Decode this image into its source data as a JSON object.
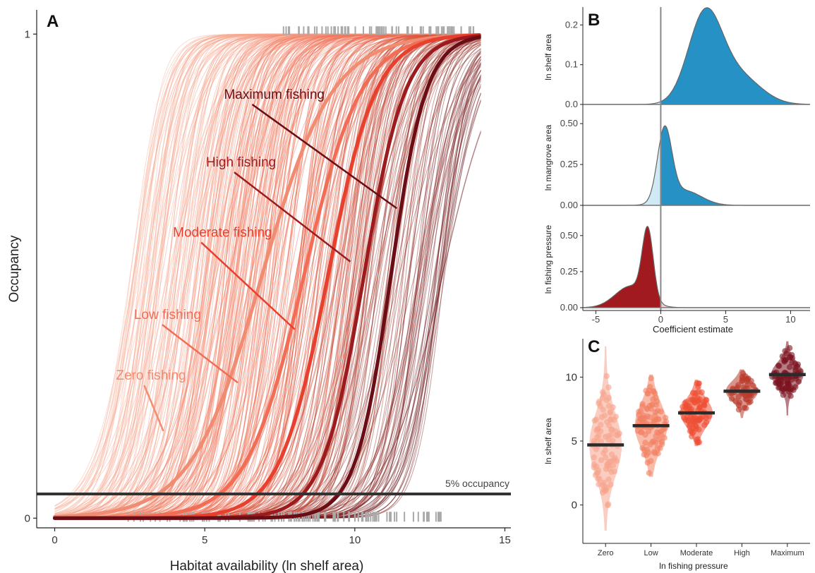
{
  "chart_data": [
    {
      "panel": "A",
      "type": "line",
      "xlabel": "Habitat availability (ln shelf area)",
      "ylabel": "Occupancy",
      "xlim": [
        -0.6,
        15.2
      ],
      "ylim": [
        -0.02,
        1.05
      ],
      "x_ticks": [
        0,
        5,
        10,
        15
      ],
      "y_ticks": [
        0,
        1
      ],
      "threshold": {
        "y": 0.05,
        "label": "5% occupancy"
      },
      "series": [
        {
          "name": "Zero fishing",
          "midpoint": 6.9,
          "slope": 0.85,
          "color": "#f08c72",
          "label_pos": [
            2.7,
            0.295
          ],
          "arrow_to": [
            3.62,
            0.18
          ]
        },
        {
          "name": "Low fishing",
          "midpoint": 8.3,
          "slope": 1.05,
          "color": "#f26d55",
          "label_pos": [
            3.3,
            0.42
          ],
          "arrow_to": [
            6.1,
            0.28
          ]
        },
        {
          "name": "Moderate fishing",
          "midpoint": 9.1,
          "slope": 1.25,
          "color": "#e8402e",
          "label_pos": [
            4.6,
            0.59
          ],
          "arrow_to": [
            8.0,
            0.39
          ]
        },
        {
          "name": "High fishing",
          "midpoint": 10.3,
          "slope": 1.45,
          "color": "#9c1b1f",
          "label_pos": [
            5.7,
            0.735
          ],
          "arrow_to": [
            9.85,
            0.53
          ]
        },
        {
          "name": "Maximum fishing",
          "midpoint": 11.2,
          "slope": 1.7,
          "color": "#6a0d15",
          "label_pos": [
            6.3,
            0.875
          ],
          "arrow_to": [
            11.4,
            0.64
          ]
        }
      ],
      "rug_top_range": [
        7.5,
        14.0
      ],
      "rug_bottom_range": [
        2.4,
        12.9
      ]
    },
    {
      "panel": "B",
      "type": "area",
      "xlabel": "Coefficient estimate",
      "xlim": [
        -6,
        11.5
      ],
      "x_ticks": [
        -5,
        0,
        5,
        10
      ],
      "facets": [
        {
          "ylabel": "ln shelf area",
          "ylim": [
            0,
            0.245
          ],
          "y_ticks": [
            0,
            0.1,
            0.2
          ],
          "y_tick_labels": [
            "0.0",
            "0.1",
            "0.2"
          ],
          "components": [
            {
              "center": 3.4,
              "sd": 1.3,
              "weight": 0.22
            },
            {
              "center": 6.0,
              "sd": 1.7,
              "weight": 0.07
            }
          ],
          "color": "#2691c4",
          "neg_color": "#cfe9f5"
        },
        {
          "ylabel": "ln mangrove area",
          "ylim": [
            0,
            0.6
          ],
          "y_ticks": [
            0,
            0.25,
            0.5
          ],
          "y_tick_labels": [
            "0.00",
            "0.25",
            "0.50"
          ],
          "components": [
            {
              "center": 0.3,
              "sd": 0.55,
              "weight": 0.44
            },
            {
              "center": 1.8,
              "sd": 1.3,
              "weight": 0.09
            }
          ],
          "color": "#2691c4",
          "neg_color": "#cfe9f5"
        },
        {
          "ylabel": "ln fishing pressure",
          "ylim": [
            0,
            0.69
          ],
          "y_ticks": [
            0,
            0.25,
            0.5
          ],
          "y_tick_labels": [
            "0.00",
            "0.25",
            "0.50"
          ],
          "components": [
            {
              "center": -1.0,
              "sd": 0.42,
              "weight": 0.48
            },
            {
              "center": -2.3,
              "sd": 1.2,
              "weight": 0.15
            }
          ],
          "color": "#a01a1f",
          "neg_color": "#a01a1f",
          "pos_color": "#f3cfcf"
        }
      ]
    },
    {
      "panel": "C",
      "type": "scatter",
      "xlabel": "ln fishing pressure",
      "ylabel": "ln shelf area",
      "ylim": [
        -3,
        13
      ],
      "y_ticks": [
        0,
        5,
        10
      ],
      "categories": [
        "Zero",
        "Low",
        "Moderate",
        "High",
        "Maximum"
      ],
      "means": [
        4.7,
        6.2,
        7.2,
        8.9,
        10.2
      ],
      "spreads": [
        2.2,
        1.6,
        1.0,
        0.7,
        0.85
      ],
      "violin_ranges": [
        [
          -2.0,
          12.4
        ],
        [
          2.2,
          10.2
        ],
        [
          4.6,
          9.8
        ],
        [
          6.8,
          10.6
        ],
        [
          7.0,
          12.8
        ]
      ],
      "counts": [
        95,
        95,
        85,
        50,
        80
      ],
      "colors": [
        "#f6a48c",
        "#f28163",
        "#ee4f33",
        "#b93a2c",
        "#7c1420"
      ]
    }
  ],
  "panel_labels": {
    "a": "A",
    "b": "B",
    "c": "C"
  }
}
